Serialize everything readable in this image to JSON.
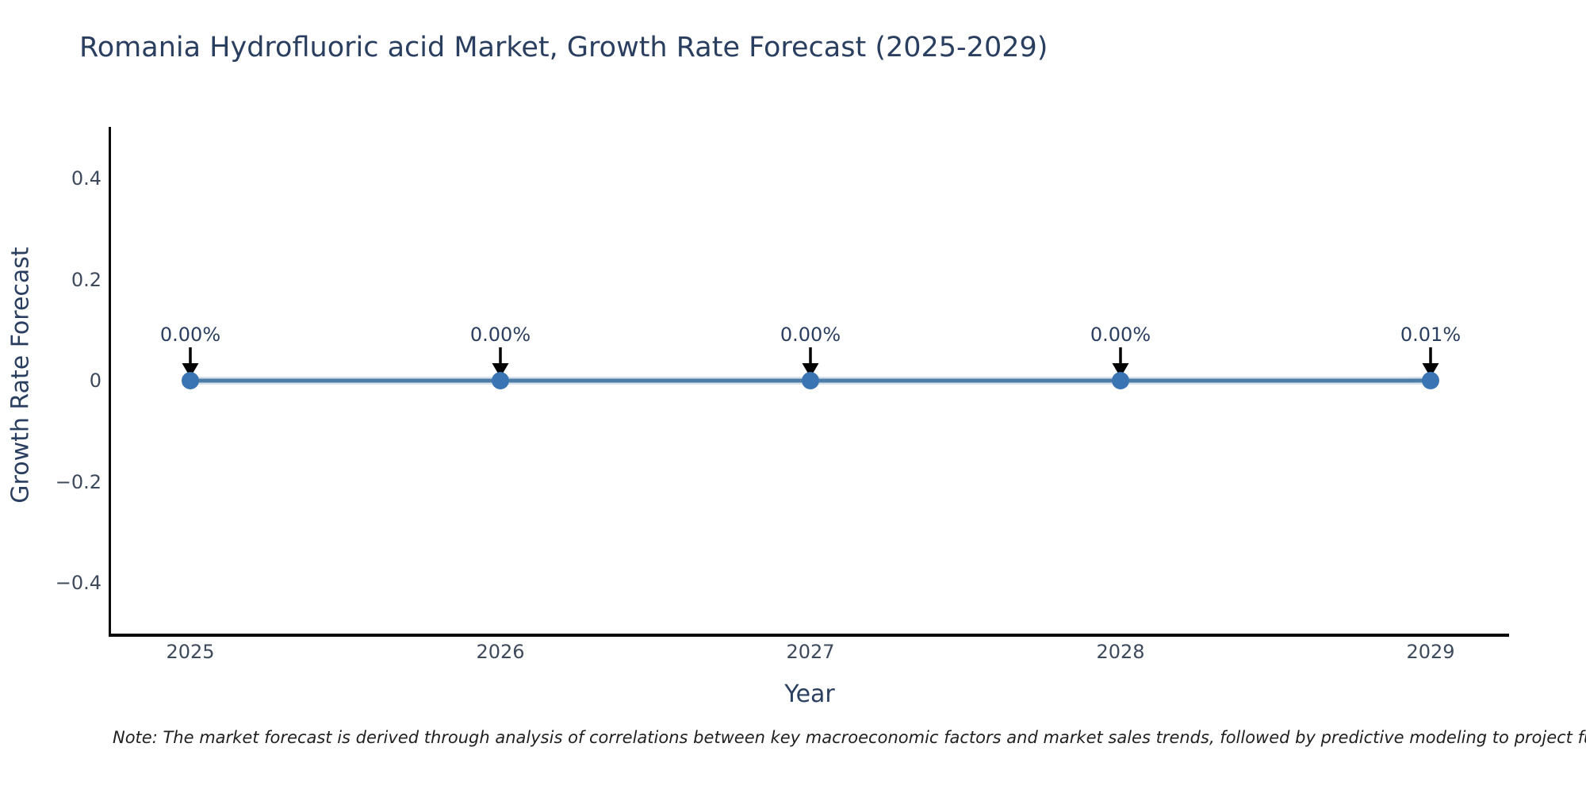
{
  "chart": {
    "title": "Romania Hydrofluoric acid Market, Growth Rate Forecast (2025-2029)",
    "xlabel": "Year",
    "ylabel": "Growth Rate Forecast",
    "note": "Note: The market forecast is derived through analysis of correlations between key macroeconomic factors and market sales trends, followed by predictive modeling to project future sa"
  },
  "chart_data": {
    "type": "line",
    "title": "Romania Hydrofluoric acid Market, Growth Rate Forecast (2025-2029)",
    "xlabel": "Year",
    "ylabel": "Growth Rate Forecast",
    "categories": [
      2025,
      2026,
      2027,
      2028,
      2029
    ],
    "series": [
      {
        "name": "Growth Rate Forecast",
        "values": [
          0.0,
          0.0,
          0.0,
          0.0,
          0.0001
        ],
        "point_labels": [
          "0.00%",
          "0.00%",
          "0.00%",
          "0.00%",
          "0.01%"
        ]
      }
    ],
    "xtick_labels": [
      "2025",
      "2026",
      "2027",
      "2028",
      "2029"
    ],
    "ytick_values": [
      0.4,
      0.2,
      0,
      -0.2,
      -0.4
    ],
    "ytick_labels": [
      "0.4",
      "0.2",
      "0",
      "−0.2",
      "−0.4"
    ],
    "ylim": [
      -0.5,
      0.5
    ],
    "grid": false,
    "legend_position": "none",
    "annotation_arrows": true,
    "colors": {
      "line": "#4e7ca8",
      "line_halo": "rgba(79,124,168,0.22)",
      "marker": "#3b74b3",
      "arrow": "#000000",
      "title_text": "#2a3f5f",
      "tick_text": "#3d4a5c",
      "note_text": "#1f1f1f",
      "axis_line": "#0a0a0a"
    }
  }
}
